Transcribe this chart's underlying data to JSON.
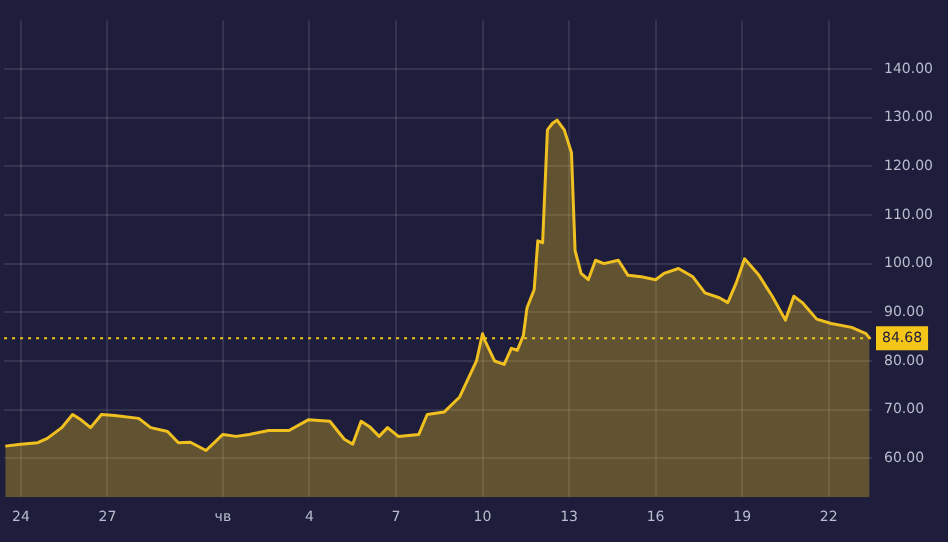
{
  "chart_data": {
    "type": "area",
    "x": [
      "--06-23T11:00",
      "--06-24T00:00",
      "--06-24T14:00",
      "--06-24T22:00",
      "--06-25T10:00",
      "--06-25T19:00",
      "--06-26T02:00",
      "--06-26T10:00",
      "--06-26T19:00",
      "--06-27T06:00",
      "--06-28T02:00",
      "--06-28T12:00",
      "--06-29T02:00",
      "--06-29T11:00",
      "--06-29T21:00",
      "--06-30T10:00",
      "--07-01T00:00",
      "--07-01T11:00",
      "--07-01T22:00",
      "--07-02T14:00",
      "--07-03T07:00",
      "--07-03T23:00",
      "--07-04T17:00",
      "--07-05T05:00",
      "--07-05T12:00",
      "--07-05T19:00",
      "--07-06T02:00",
      "--07-06T10:00",
      "--07-06T17:00",
      "--07-07T02:00",
      "--07-07T19:00",
      "--07-08T02:00",
      "--07-08T16:00",
      "--07-09T05:00",
      "--07-09T19:00",
      "--07-10T00:00",
      "--07-10T02:00",
      "--07-10T10:00",
      "--07-10T18:00",
      "--07-11T00:00",
      "--07-11T05:00",
      "--07-11T10:00",
      "--07-11T13:00",
      "--07-11T19:00",
      "--07-11T22:00",
      "--07-12T02:00",
      "--07-12T06:00",
      "--07-12T10:00",
      "--07-12T14:00",
      "--07-12T20:00",
      "--07-13T02:00",
      "--07-13T05:00",
      "--07-13T10:00",
      "--07-13T16:00",
      "--07-13T22:00",
      "--07-14T05:00",
      "--07-14T17:00",
      "--07-15T01:00",
      "--07-15T12:00",
      "--07-16T00:00",
      "--07-16T07:00",
      "--07-16T19:00",
      "--07-17T07:00",
      "--07-17T17:00",
      "--07-18T05:00",
      "--07-18T12:00",
      "--07-18T19:00",
      "--07-19T02:00",
      "--07-19T14:00",
      "--07-20T01:00",
      "--07-20T12:00",
      "--07-20T19:00",
      "--07-21T02:00",
      "--07-21T14:00",
      "--07-22T02:00",
      "--07-22T19:00",
      "--07-23T07:00",
      "--07-23T10:00"
    ],
    "series": [
      {
        "color": "#f0c020",
        "values": [
          62.5,
          62.9,
          63.2,
          64.1,
          66.3,
          69.0,
          67.9,
          66.3,
          69.0,
          68.8,
          68.2,
          66.3,
          65.5,
          63.2,
          63.3,
          61.6,
          64.9,
          64.5,
          64.9,
          65.7,
          65.7,
          67.9,
          67.6,
          63.9,
          62.9,
          67.6,
          66.5,
          64.5,
          66.3,
          64.5,
          64.9,
          69.0,
          69.5,
          72.6,
          80.0,
          85.6,
          84.2,
          80.0,
          79.3,
          82.6,
          82.2,
          85.3,
          90.9,
          94.7,
          104.7,
          104.3,
          127.5,
          128.8,
          129.5,
          127.5,
          122.8,
          102.7,
          98.0,
          96.7,
          100.7,
          100.0,
          100.7,
          97.6,
          97.3,
          96.7,
          98.0,
          99.0,
          97.3,
          94.0,
          93.0,
          92.0,
          96.0,
          101.0,
          97.6,
          93.3,
          88.4,
          93.3,
          92.0,
          88.6,
          87.7,
          86.9,
          85.6,
          84.7
        ]
      }
    ],
    "xlim": [
      "--06-23T10:00",
      "--07-23T12:00"
    ],
    "xticks": [
      {
        "value": "--06-24",
        "label": "24"
      },
      {
        "value": "--06-27",
        "label": "27"
      },
      {
        "value": "--07-01",
        "label": "чв"
      },
      {
        "value": "--07-04",
        "label": "4"
      },
      {
        "value": "--07-07",
        "label": "7"
      },
      {
        "value": "--07-10",
        "label": "10"
      },
      {
        "value": "--07-13",
        "label": "13"
      },
      {
        "value": "--07-16",
        "label": "16"
      },
      {
        "value": "--07-19",
        "label": "19"
      },
      {
        "value": "--07-22",
        "label": "22"
      }
    ],
    "ylim": [
      52,
      150
    ],
    "yticks": [
      {
        "value": 60,
        "label": "60.00"
      },
      {
        "value": 70,
        "label": "70.00"
      },
      {
        "value": 80,
        "label": "80.00"
      },
      {
        "value": 90,
        "label": "90.00"
      },
      {
        "value": 100,
        "label": "100.00"
      },
      {
        "value": 110,
        "label": "110.00"
      },
      {
        "value": 120,
        "label": "120.00"
      },
      {
        "value": 130,
        "label": "130.00"
      },
      {
        "value": 140,
        "label": "140.00"
      }
    ],
    "ref_lines": [
      {
        "axis": "y",
        "value": 84.68,
        "label": "84.68",
        "color": "#f5c518",
        "line_style": "dotted"
      }
    ],
    "grid": true,
    "legend": false,
    "marker": "none"
  }
}
